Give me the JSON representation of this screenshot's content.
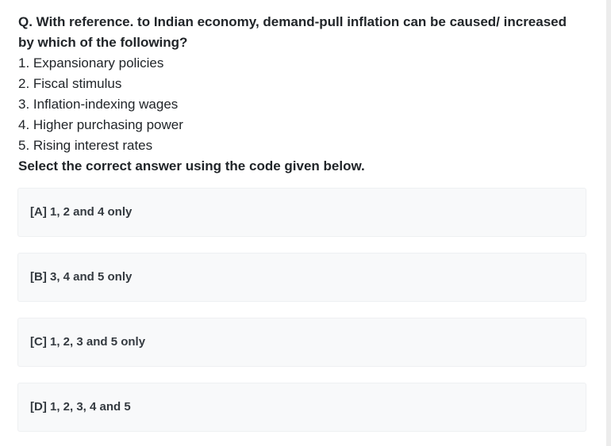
{
  "question": {
    "title": "Q. With reference. to Indian economy, demand-pull inflation can be caused/ increased by which of the following?",
    "statements": [
      "1. Expansionary policies",
      "2. Fiscal stimulus",
      "3. Inflation-indexing wages",
      "4. Higher purchasing power",
      "5. Rising interest rates"
    ],
    "instruction": "Select the correct answer using the code given below."
  },
  "options": [
    {
      "label": "[A] 1, 2 and 4 only"
    },
    {
      "label": "[B] 3, 4 and 5 only"
    },
    {
      "label": "[C] 1, 2, 3 and 5 only"
    },
    {
      "label": "[D] 1, 2, 3, 4 and 5"
    }
  ]
}
